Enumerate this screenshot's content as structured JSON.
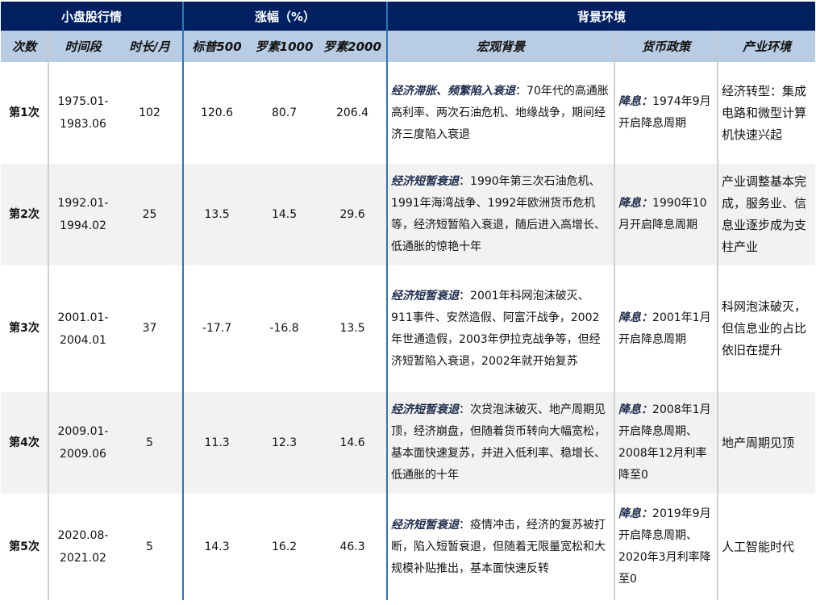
{
  "header": {
    "group1": "小盘股行情",
    "group2": "涨幅（%）",
    "group3": "背景环境",
    "cols": [
      "次数",
      "时间段",
      "时长/月",
      "标普500",
      "罗素1000",
      "罗素2000",
      "宏观背景",
      "货币政策",
      "产业环境"
    ]
  },
  "rows": [
    {
      "idx": "第1次",
      "period": "1975.01-\n1983.06",
      "months": "102",
      "sp500": "120.6",
      "r1000": "80.7",
      "r2000": "206.4",
      "macro_tag": "经济滞胀、频繁陷入衰退",
      "macro": "：70年代的高通胀高利率、两次石油危机、地缘战争，期间经济三度陷入衰退",
      "policy_tag": "降息：",
      "policy": "1974年9月开启降息周期",
      "industry": "经济转型：集成电路和微型计算机快速兴起"
    },
    {
      "idx": "第2次",
      "period": "1992.01-\n1994.02",
      "months": "25",
      "sp500": "13.5",
      "r1000": "14.5",
      "r2000": "29.6",
      "macro_tag": "经济短暂衰退",
      "macro": "：1990年第三次石油危机、1991年海湾战争、1992年欧洲货币危机等，经济短暂陷入衰退，随后进入高增长、低通胀的惊艳十年",
      "policy_tag": "降息：",
      "policy": "1990年10月开启降息周期",
      "industry": "产业调整基本完成，服务业、信息业逐步成为支柱产业"
    },
    {
      "idx": "第3次",
      "period": "2001.01-\n2004.01",
      "months": "37",
      "sp500": "-17.7",
      "r1000": "-16.8",
      "r2000": "13.5",
      "macro_tag": "经济短暂衰退",
      "macro": "：2001年科网泡沫破灭、911事件、安然造假、阿富汗战争，2002年世通造假，2003年伊拉克战争等，但经济短暂陷入衰退，2002年就开始复苏",
      "policy_tag": "降息：",
      "policy": "2001年1月开启降息周期",
      "industry": "科网泡沫破灭，但信息业的占比依旧在提升"
    },
    {
      "idx": "第4次",
      "period": "2009.01-\n2009.06",
      "months": "5",
      "sp500": "11.3",
      "r1000": "12.3",
      "r2000": "14.6",
      "macro_tag": "经济短暂衰退",
      "macro": "：次贷泡沫破灭、地产周期见顶，经济崩盘，但随着货币转向大幅宽松，基本面快速复苏，并进入低利率、稳增长、低通胀的十年",
      "policy_tag": "降息：",
      "policy": "2008年1月开启降息周期、2008年12月利率降至0",
      "industry": "地产周期见顶"
    },
    {
      "idx": "第5次",
      "period": "2020.08-\n2021.02",
      "months": "5",
      "sp500": "14.3",
      "r1000": "16.2",
      "r2000": "46.3",
      "macro_tag": "经济短暂衰退",
      "macro": "：疫情冲击，经济的复苏被打断，陷入短暂衰退，但随着无限量宽松和大规模补贴推出，基本面快速反转",
      "policy_tag": "降息：",
      "policy": "2019年9月开启降息周期、2020年3月利率降至0",
      "industry": "人工智能时代"
    }
  ]
}
